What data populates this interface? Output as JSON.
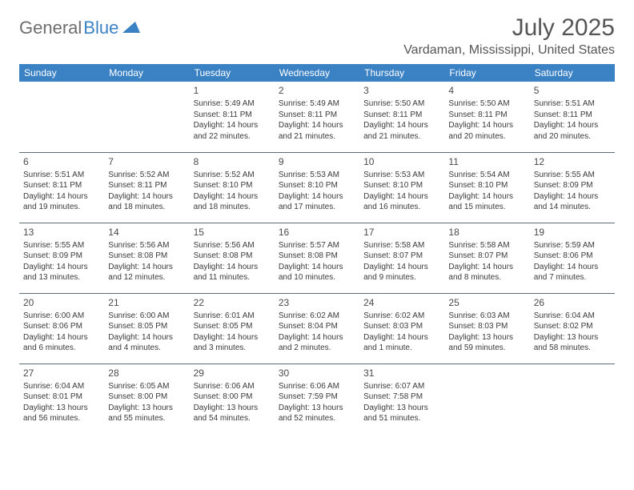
{
  "logo": {
    "text1": "General",
    "text2": "Blue"
  },
  "title": "July 2025",
  "location": "Vardaman, Mississippi, United States",
  "colors": {
    "header_bg": "#3b82c4",
    "header_text": "#ffffff",
    "border": "#5a6b7a",
    "body_text": "#3a3a3a",
    "title_text": "#555555"
  },
  "weekdays": [
    "Sunday",
    "Monday",
    "Tuesday",
    "Wednesday",
    "Thursday",
    "Friday",
    "Saturday"
  ],
  "weeks": [
    [
      null,
      null,
      {
        "d": "1",
        "sr": "5:49 AM",
        "ss": "8:11 PM",
        "dl": "14 hours and 22 minutes."
      },
      {
        "d": "2",
        "sr": "5:49 AM",
        "ss": "8:11 PM",
        "dl": "14 hours and 21 minutes."
      },
      {
        "d": "3",
        "sr": "5:50 AM",
        "ss": "8:11 PM",
        "dl": "14 hours and 21 minutes."
      },
      {
        "d": "4",
        "sr": "5:50 AM",
        "ss": "8:11 PM",
        "dl": "14 hours and 20 minutes."
      },
      {
        "d": "5",
        "sr": "5:51 AM",
        "ss": "8:11 PM",
        "dl": "14 hours and 20 minutes."
      }
    ],
    [
      {
        "d": "6",
        "sr": "5:51 AM",
        "ss": "8:11 PM",
        "dl": "14 hours and 19 minutes."
      },
      {
        "d": "7",
        "sr": "5:52 AM",
        "ss": "8:11 PM",
        "dl": "14 hours and 18 minutes."
      },
      {
        "d": "8",
        "sr": "5:52 AM",
        "ss": "8:10 PM",
        "dl": "14 hours and 18 minutes."
      },
      {
        "d": "9",
        "sr": "5:53 AM",
        "ss": "8:10 PM",
        "dl": "14 hours and 17 minutes."
      },
      {
        "d": "10",
        "sr": "5:53 AM",
        "ss": "8:10 PM",
        "dl": "14 hours and 16 minutes."
      },
      {
        "d": "11",
        "sr": "5:54 AM",
        "ss": "8:10 PM",
        "dl": "14 hours and 15 minutes."
      },
      {
        "d": "12",
        "sr": "5:55 AM",
        "ss": "8:09 PM",
        "dl": "14 hours and 14 minutes."
      }
    ],
    [
      {
        "d": "13",
        "sr": "5:55 AM",
        "ss": "8:09 PM",
        "dl": "14 hours and 13 minutes."
      },
      {
        "d": "14",
        "sr": "5:56 AM",
        "ss": "8:08 PM",
        "dl": "14 hours and 12 minutes."
      },
      {
        "d": "15",
        "sr": "5:56 AM",
        "ss": "8:08 PM",
        "dl": "14 hours and 11 minutes."
      },
      {
        "d": "16",
        "sr": "5:57 AM",
        "ss": "8:08 PM",
        "dl": "14 hours and 10 minutes."
      },
      {
        "d": "17",
        "sr": "5:58 AM",
        "ss": "8:07 PM",
        "dl": "14 hours and 9 minutes."
      },
      {
        "d": "18",
        "sr": "5:58 AM",
        "ss": "8:07 PM",
        "dl": "14 hours and 8 minutes."
      },
      {
        "d": "19",
        "sr": "5:59 AM",
        "ss": "8:06 PM",
        "dl": "14 hours and 7 minutes."
      }
    ],
    [
      {
        "d": "20",
        "sr": "6:00 AM",
        "ss": "8:06 PM",
        "dl": "14 hours and 6 minutes."
      },
      {
        "d": "21",
        "sr": "6:00 AM",
        "ss": "8:05 PM",
        "dl": "14 hours and 4 minutes."
      },
      {
        "d": "22",
        "sr": "6:01 AM",
        "ss": "8:05 PM",
        "dl": "14 hours and 3 minutes."
      },
      {
        "d": "23",
        "sr": "6:02 AM",
        "ss": "8:04 PM",
        "dl": "14 hours and 2 minutes."
      },
      {
        "d": "24",
        "sr": "6:02 AM",
        "ss": "8:03 PM",
        "dl": "14 hours and 1 minute."
      },
      {
        "d": "25",
        "sr": "6:03 AM",
        "ss": "8:03 PM",
        "dl": "13 hours and 59 minutes."
      },
      {
        "d": "26",
        "sr": "6:04 AM",
        "ss": "8:02 PM",
        "dl": "13 hours and 58 minutes."
      }
    ],
    [
      {
        "d": "27",
        "sr": "6:04 AM",
        "ss": "8:01 PM",
        "dl": "13 hours and 56 minutes."
      },
      {
        "d": "28",
        "sr": "6:05 AM",
        "ss": "8:00 PM",
        "dl": "13 hours and 55 minutes."
      },
      {
        "d": "29",
        "sr": "6:06 AM",
        "ss": "8:00 PM",
        "dl": "13 hours and 54 minutes."
      },
      {
        "d": "30",
        "sr": "6:06 AM",
        "ss": "7:59 PM",
        "dl": "13 hours and 52 minutes."
      },
      {
        "d": "31",
        "sr": "6:07 AM",
        "ss": "7:58 PM",
        "dl": "13 hours and 51 minutes."
      },
      null,
      null
    ]
  ],
  "labels": {
    "sunrise": "Sunrise:",
    "sunset": "Sunset:",
    "daylight": "Daylight:"
  }
}
